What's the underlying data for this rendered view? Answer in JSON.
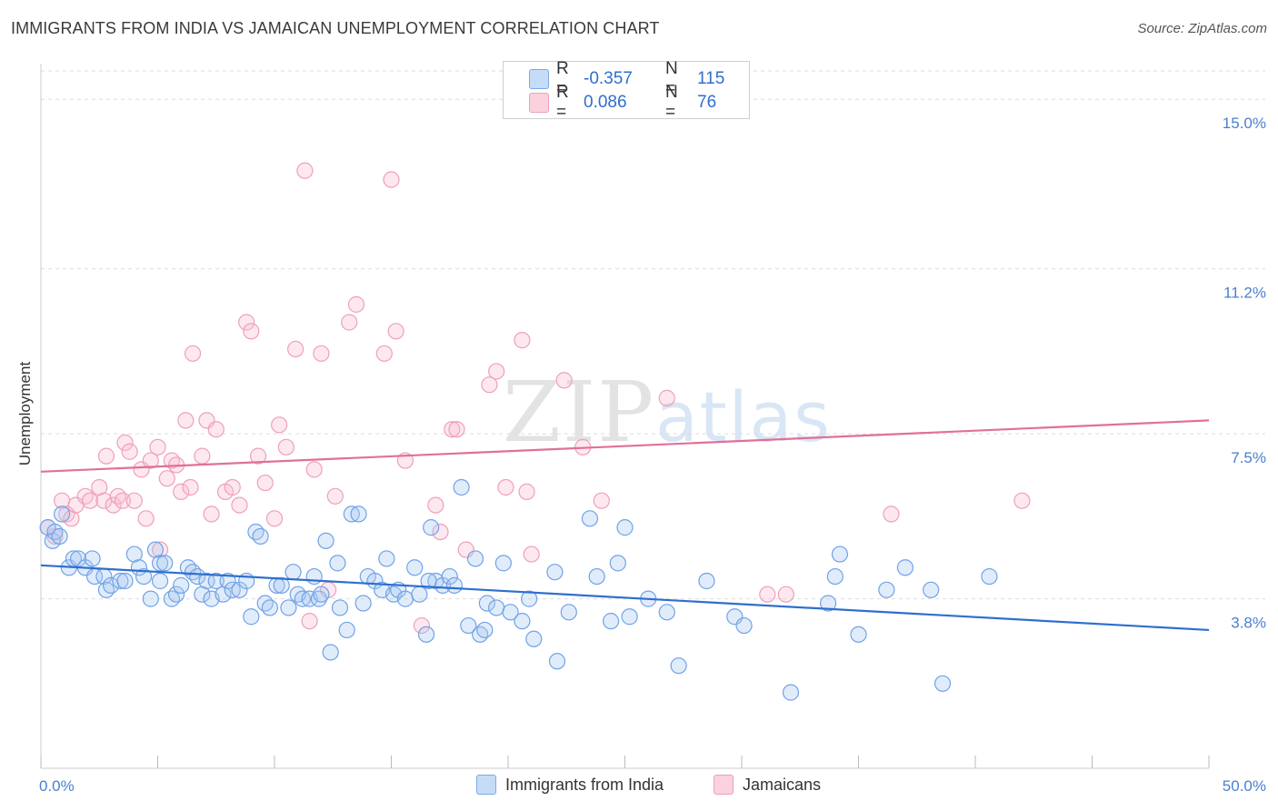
{
  "title": "IMMIGRANTS FROM INDIA VS JAMAICAN UNEMPLOYMENT CORRELATION CHART",
  "source": "Source: ZipAtlas.com",
  "watermark": {
    "zip": "ZIP",
    "atlas": "atlas"
  },
  "colors": {
    "blue": "#6fa3e8",
    "blue_line": "#2f6fcd",
    "pink": "#f0a0bb",
    "pink_line": "#e07098",
    "tick": "#4a7fd0"
  },
  "legend": {
    "rows": [
      {
        "r_label": "R =",
        "r_value": "-0.357",
        "n_label": "N =",
        "n_value": "115"
      },
      {
        "r_label": "R =",
        "r_value": "0.086",
        "n_label": "N =",
        "n_value": "76"
      }
    ]
  },
  "chart_data": {
    "type": "scatter",
    "title": "IMMIGRANTS FROM INDIA VS JAMAICAN UNEMPLOYMENT CORRELATION CHART",
    "xlabel": "",
    "ylabel": "Unemployment",
    "xlim": [
      0,
      50
    ],
    "ylim": [
      0,
      15.8
    ],
    "x_tick_labels": [
      "0.0%",
      "50.0%"
    ],
    "y_ticks": [
      {
        "value": 3.8,
        "label": "3.8%"
      },
      {
        "value": 7.5,
        "label": "7.5%"
      },
      {
        "value": 11.2,
        "label": "11.2%"
      },
      {
        "value": 15.0,
        "label": "15.0%"
      }
    ],
    "grid": true,
    "legend_position": "bottom",
    "series": [
      {
        "name": "Immigrants from India",
        "color": "#6fa3e8",
        "trend": {
          "x": [
            0,
            50
          ],
          "y": [
            4.55,
            3.1
          ]
        },
        "points": [
          [
            0.3,
            5.4
          ],
          [
            0.5,
            5.1
          ],
          [
            0.6,
            5.3
          ],
          [
            0.8,
            5.2
          ],
          [
            0.9,
            5.7
          ],
          [
            1.2,
            4.5
          ],
          [
            1.4,
            4.7
          ],
          [
            1.6,
            4.7
          ],
          [
            1.9,
            4.5
          ],
          [
            2.2,
            4.7
          ],
          [
            2.3,
            4.3
          ],
          [
            2.7,
            4.3
          ],
          [
            2.8,
            4.0
          ],
          [
            3.0,
            4.1
          ],
          [
            3.4,
            4.2
          ],
          [
            3.6,
            4.2
          ],
          [
            4.0,
            4.8
          ],
          [
            4.2,
            4.5
          ],
          [
            4.4,
            4.3
          ],
          [
            4.7,
            3.8
          ],
          [
            4.9,
            4.9
          ],
          [
            5.1,
            4.6
          ],
          [
            5.3,
            4.6
          ],
          [
            5.6,
            3.8
          ],
          [
            5.8,
            3.9
          ],
          [
            6.0,
            4.1
          ],
          [
            6.3,
            4.5
          ],
          [
            6.5,
            4.4
          ],
          [
            6.7,
            4.3
          ],
          [
            6.9,
            3.9
          ],
          [
            7.1,
            4.2
          ],
          [
            7.3,
            3.8
          ],
          [
            7.5,
            4.2
          ],
          [
            7.8,
            3.9
          ],
          [
            8.0,
            4.2
          ],
          [
            8.2,
            4.0
          ],
          [
            8.5,
            4.0
          ],
          [
            8.8,
            4.2
          ],
          [
            9.0,
            3.4
          ],
          [
            9.2,
            5.3
          ],
          [
            9.4,
            5.2
          ],
          [
            9.6,
            3.7
          ],
          [
            9.8,
            3.6
          ],
          [
            10.1,
            4.1
          ],
          [
            10.3,
            4.1
          ],
          [
            10.6,
            3.6
          ],
          [
            10.8,
            4.4
          ],
          [
            11.0,
            3.9
          ],
          [
            11.2,
            3.8
          ],
          [
            11.5,
            3.8
          ],
          [
            11.7,
            4.3
          ],
          [
            11.9,
            3.8
          ],
          [
            12.2,
            5.1
          ],
          [
            12.4,
            2.6
          ],
          [
            12.7,
            4.6
          ],
          [
            12.8,
            3.6
          ],
          [
            13.1,
            3.1
          ],
          [
            13.3,
            5.7
          ],
          [
            13.6,
            5.7
          ],
          [
            13.8,
            3.7
          ],
          [
            14.0,
            4.3
          ],
          [
            14.3,
            4.2
          ],
          [
            14.6,
            4.0
          ],
          [
            14.8,
            4.7
          ],
          [
            15.1,
            3.9
          ],
          [
            15.3,
            4.0
          ],
          [
            15.6,
            3.8
          ],
          [
            16.0,
            4.5
          ],
          [
            16.2,
            3.9
          ],
          [
            16.5,
            3.0
          ],
          [
            16.7,
            5.4
          ],
          [
            16.9,
            4.2
          ],
          [
            17.2,
            4.1
          ],
          [
            17.5,
            4.3
          ],
          [
            17.7,
            4.1
          ],
          [
            18.0,
            6.3
          ],
          [
            18.3,
            3.2
          ],
          [
            18.6,
            4.7
          ],
          [
            18.8,
            3.0
          ],
          [
            19.1,
            3.7
          ],
          [
            19.5,
            3.6
          ],
          [
            19.8,
            4.6
          ],
          [
            20.1,
            3.5
          ],
          [
            20.6,
            3.3
          ],
          [
            20.9,
            3.8
          ],
          [
            21.1,
            2.9
          ],
          [
            22.0,
            4.4
          ],
          [
            22.1,
            2.4
          ],
          [
            22.6,
            3.5
          ],
          [
            23.5,
            5.6
          ],
          [
            23.8,
            4.3
          ],
          [
            24.4,
            3.3
          ],
          [
            24.7,
            4.6
          ],
          [
            25.0,
            5.4
          ],
          [
            25.2,
            3.4
          ],
          [
            26.8,
            3.5
          ],
          [
            27.3,
            2.3
          ],
          [
            28.5,
            4.2
          ],
          [
            29.7,
            3.4
          ],
          [
            30.1,
            3.2
          ],
          [
            32.1,
            1.7
          ],
          [
            33.7,
            3.7
          ],
          [
            34.0,
            4.3
          ],
          [
            34.2,
            4.8
          ],
          [
            35.0,
            3.0
          ],
          [
            36.2,
            4.0
          ],
          [
            37.0,
            4.5
          ],
          [
            38.1,
            4.0
          ],
          [
            38.6,
            1.9
          ],
          [
            40.6,
            4.3
          ],
          [
            5.1,
            4.2
          ],
          [
            12.0,
            3.9
          ],
          [
            16.6,
            4.2
          ],
          [
            19.0,
            3.1
          ],
          [
            26.0,
            3.8
          ]
        ]
      },
      {
        "name": "Jamaicans",
        "color": "#f0a0bb",
        "trend": {
          "x": [
            0,
            50
          ],
          "y": [
            6.65,
            7.8
          ]
        },
        "points": [
          [
            0.3,
            5.4
          ],
          [
            0.6,
            5.2
          ],
          [
            0.9,
            6.0
          ],
          [
            1.1,
            5.7
          ],
          [
            1.3,
            5.6
          ],
          [
            1.5,
            5.9
          ],
          [
            1.9,
            6.1
          ],
          [
            2.1,
            6.0
          ],
          [
            2.5,
            6.3
          ],
          [
            2.7,
            6.0
          ],
          [
            2.8,
            7.0
          ],
          [
            3.1,
            5.9
          ],
          [
            3.3,
            6.1
          ],
          [
            3.5,
            6.0
          ],
          [
            3.6,
            7.3
          ],
          [
            3.8,
            7.1
          ],
          [
            4.0,
            6.0
          ],
          [
            4.3,
            6.7
          ],
          [
            4.5,
            5.6
          ],
          [
            4.7,
            6.9
          ],
          [
            5.0,
            7.2
          ],
          [
            5.1,
            4.9
          ],
          [
            5.4,
            6.5
          ],
          [
            5.6,
            6.9
          ],
          [
            5.8,
            6.8
          ],
          [
            6.0,
            6.2
          ],
          [
            6.2,
            7.8
          ],
          [
            6.4,
            6.3
          ],
          [
            6.5,
            9.3
          ],
          [
            6.9,
            7.0
          ],
          [
            7.1,
            7.8
          ],
          [
            7.3,
            5.7
          ],
          [
            7.5,
            7.6
          ],
          [
            7.9,
            6.2
          ],
          [
            8.2,
            6.3
          ],
          [
            8.5,
            5.9
          ],
          [
            8.8,
            10.0
          ],
          [
            9.0,
            9.8
          ],
          [
            9.3,
            7.0
          ],
          [
            9.6,
            6.4
          ],
          [
            10.0,
            5.6
          ],
          [
            10.2,
            7.7
          ],
          [
            10.5,
            7.2
          ],
          [
            10.9,
            9.4
          ],
          [
            11.3,
            13.4
          ],
          [
            11.5,
            3.3
          ],
          [
            11.7,
            6.7
          ],
          [
            12.0,
            9.3
          ],
          [
            12.3,
            4.0
          ],
          [
            12.6,
            6.1
          ],
          [
            13.2,
            10.0
          ],
          [
            13.5,
            10.4
          ],
          [
            14.7,
            9.3
          ],
          [
            15.0,
            13.2
          ],
          [
            15.2,
            9.8
          ],
          [
            15.6,
            6.9
          ],
          [
            16.3,
            3.2
          ],
          [
            16.9,
            5.9
          ],
          [
            17.1,
            5.3
          ],
          [
            17.6,
            7.6
          ],
          [
            17.8,
            7.6
          ],
          [
            18.2,
            4.9
          ],
          [
            19.2,
            8.6
          ],
          [
            19.5,
            8.9
          ],
          [
            19.9,
            6.3
          ],
          [
            20.6,
            9.6
          ],
          [
            20.8,
            6.2
          ],
          [
            21.0,
            4.8
          ],
          [
            22.4,
            8.7
          ],
          [
            23.2,
            7.2
          ],
          [
            24.0,
            6.0
          ],
          [
            26.8,
            8.3
          ],
          [
            31.1,
            3.9
          ],
          [
            31.9,
            3.9
          ],
          [
            36.4,
            5.7
          ],
          [
            42.0,
            6.0
          ]
        ]
      }
    ]
  }
}
